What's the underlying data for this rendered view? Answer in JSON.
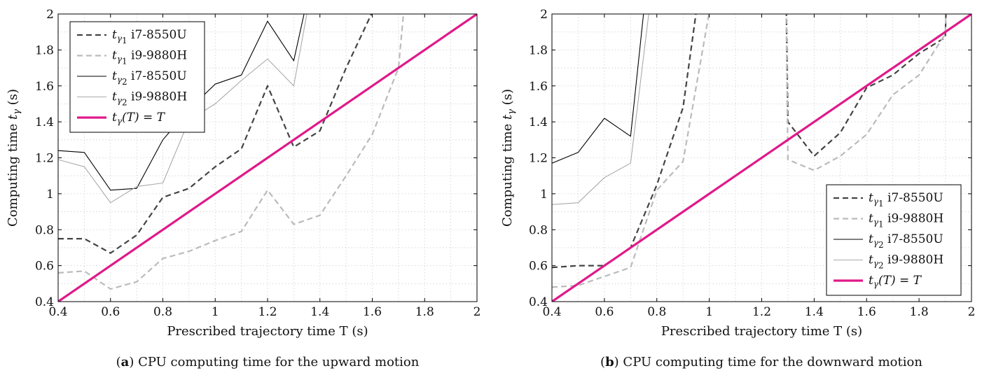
{
  "chart_data": [
    {
      "type": "line",
      "panel_letter": "a",
      "caption": "CPU computing time for the upward motion",
      "xlabel": "Prescribed trajectory time T (s)",
      "ylabel": "Computing time",
      "ylabel_symbol": "t",
      "ylabel_symbol_sub": "γ",
      "ylabel_unit": "(s)",
      "xlim": [
        0.4,
        2.0
      ],
      "ylim": [
        0.4,
        2.0
      ],
      "x_ticks": [
        "0.4",
        "0.6",
        "0.8",
        "1",
        "1.2",
        "1.4",
        "1.6",
        "1.8",
        "2"
      ],
      "y_ticks": [
        "0.4",
        "0.6",
        "0.8",
        "1",
        "1.2",
        "1.4",
        "1.6",
        "1.8",
        "2"
      ],
      "grid": true,
      "legend_position": "top-left",
      "series": [
        {
          "name": "i7-8550U",
          "symbol": "t",
          "sub": "γ",
          "subsub": "1",
          "color": "#444444",
          "dash": "8,5",
          "width": 2.2,
          "x": [
            0.4,
            0.5,
            0.6,
            0.7,
            0.8,
            0.9,
            1.0,
            1.1,
            1.2,
            1.3,
            1.4,
            1.5,
            1.6,
            1.7
          ],
          "y": [
            0.75,
            0.75,
            0.67,
            0.77,
            0.98,
            1.03,
            1.15,
            1.25,
            1.6,
            1.26,
            1.35,
            1.7,
            2.01,
            2.4
          ]
        },
        {
          "name": "i9-9880H",
          "symbol": "t",
          "sub": "γ",
          "subsub": "1",
          "color": "#bbbbbb",
          "dash": "8,5",
          "width": 2.2,
          "x": [
            0.4,
            0.5,
            0.6,
            0.7,
            0.8,
            0.9,
            1.0,
            1.1,
            1.2,
            1.3,
            1.4,
            1.5,
            1.6,
            1.7,
            1.72,
            1.74
          ],
          "y": [
            0.56,
            0.57,
            0.47,
            0.51,
            0.64,
            0.68,
            0.74,
            0.79,
            1.02,
            0.83,
            0.88,
            1.1,
            1.33,
            1.7,
            2.01,
            2.4
          ]
        },
        {
          "name": "i7-8550U",
          "symbol": "t",
          "sub": "γ",
          "subsub": "2",
          "color": "#000000",
          "dash": "",
          "width": 1.1,
          "x": [
            0.4,
            0.5,
            0.6,
            0.7,
            0.8,
            0.9,
            1.0,
            1.1,
            1.2,
            1.3,
            1.4
          ],
          "y": [
            1.24,
            1.23,
            1.02,
            1.03,
            1.3,
            1.47,
            1.61,
            1.66,
            1.96,
            1.74,
            2.4
          ]
        },
        {
          "name": "i9-9880H",
          "symbol": "t",
          "sub": "γ",
          "subsub": "2",
          "color": "#aaaaaa",
          "dash": "",
          "width": 1.1,
          "x": [
            0.4,
            0.5,
            0.6,
            0.7,
            0.8,
            0.9,
            1.0,
            1.1,
            1.2,
            1.3,
            1.4
          ],
          "y": [
            1.19,
            1.15,
            0.95,
            1.04,
            1.06,
            1.41,
            1.5,
            1.63,
            1.75,
            1.6,
            2.4
          ]
        },
        {
          "name": "tγ(T) = T",
          "legend_expr": "(T) = T",
          "symbol": "t",
          "sub": "γ",
          "subsub": "",
          "color": "#e0198a",
          "dash": "",
          "width": 3.2,
          "x": [
            0.4,
            2.0
          ],
          "y": [
            0.4,
            2.0
          ]
        }
      ]
    },
    {
      "type": "line",
      "panel_letter": "b",
      "caption": "CPU computing time for the downward motion",
      "xlabel": "Prescribed trajectory time T (s)",
      "ylabel": "Computing time",
      "ylabel_symbol": "t",
      "ylabel_symbol_sub": "γ",
      "ylabel_unit": "(s)",
      "xlim": [
        0.4,
        2.0
      ],
      "ylim": [
        0.4,
        2.0
      ],
      "x_ticks": [
        "0.4",
        "0.6",
        "0.8",
        "1",
        "1.2",
        "1.4",
        "1.6",
        "1.8",
        "2"
      ],
      "y_ticks": [
        "0.4",
        "0.6",
        "0.8",
        "1",
        "1.2",
        "1.4",
        "1.6",
        "1.8",
        "2"
      ],
      "grid": true,
      "legend_position": "bottom-right",
      "series": [
        {
          "name": "i7-8550U",
          "symbol": "t",
          "sub": "γ",
          "subsub": "1",
          "color": "#444444",
          "dash": "8,5",
          "width": 2.2,
          "x": [
            0.4,
            0.5,
            0.6,
            0.7,
            0.8,
            0.9,
            0.95,
            1.0,
            1.29,
            1.3,
            1.4,
            1.5,
            1.6,
            1.7,
            1.8,
            1.9,
            1.91
          ],
          "y": [
            0.59,
            0.6,
            0.6,
            0.7,
            1.05,
            1.48,
            2.01,
            2.4,
            2.4,
            1.4,
            1.21,
            1.34,
            1.59,
            1.66,
            1.78,
            1.87,
            2.4
          ]
        },
        {
          "name": "i9-9880H",
          "symbol": "t",
          "sub": "γ",
          "subsub": "1",
          "color": "#bbbbbb",
          "dash": "8,5",
          "width": 2.2,
          "x": [
            0.4,
            0.5,
            0.6,
            0.7,
            0.8,
            0.9,
            1.0,
            1.05,
            1.29,
            1.3,
            1.4,
            1.5,
            1.6,
            1.7,
            1.8,
            1.9,
            1.91
          ],
          "y": [
            0.48,
            0.49,
            0.54,
            0.59,
            1.02,
            1.18,
            2.01,
            2.4,
            2.4,
            1.19,
            1.13,
            1.21,
            1.33,
            1.55,
            1.66,
            1.89,
            2.4
          ]
        },
        {
          "name": "i7-8550U",
          "symbol": "t",
          "sub": "γ",
          "subsub": "2",
          "color": "#000000",
          "dash": "",
          "width": 1.1,
          "x": [
            0.4,
            0.5,
            0.6,
            0.7,
            0.75,
            0.8
          ],
          "y": [
            1.17,
            1.23,
            1.42,
            1.32,
            2.01,
            2.4
          ]
        },
        {
          "name": "i9-9880H",
          "symbol": "t",
          "sub": "γ",
          "subsub": "2",
          "color": "#aaaaaa",
          "dash": "",
          "width": 1.1,
          "x": [
            0.4,
            0.5,
            0.6,
            0.7,
            0.77,
            0.8
          ],
          "y": [
            0.94,
            0.95,
            1.09,
            1.17,
            2.01,
            2.4
          ]
        },
        {
          "name": "tγ(T) = T",
          "legend_expr": "(T) = T",
          "symbol": "t",
          "sub": "γ",
          "subsub": "",
          "color": "#e0198a",
          "dash": "",
          "width": 3.2,
          "x": [
            0.4,
            2.0
          ],
          "y": [
            0.4,
            2.0
          ]
        }
      ]
    }
  ]
}
